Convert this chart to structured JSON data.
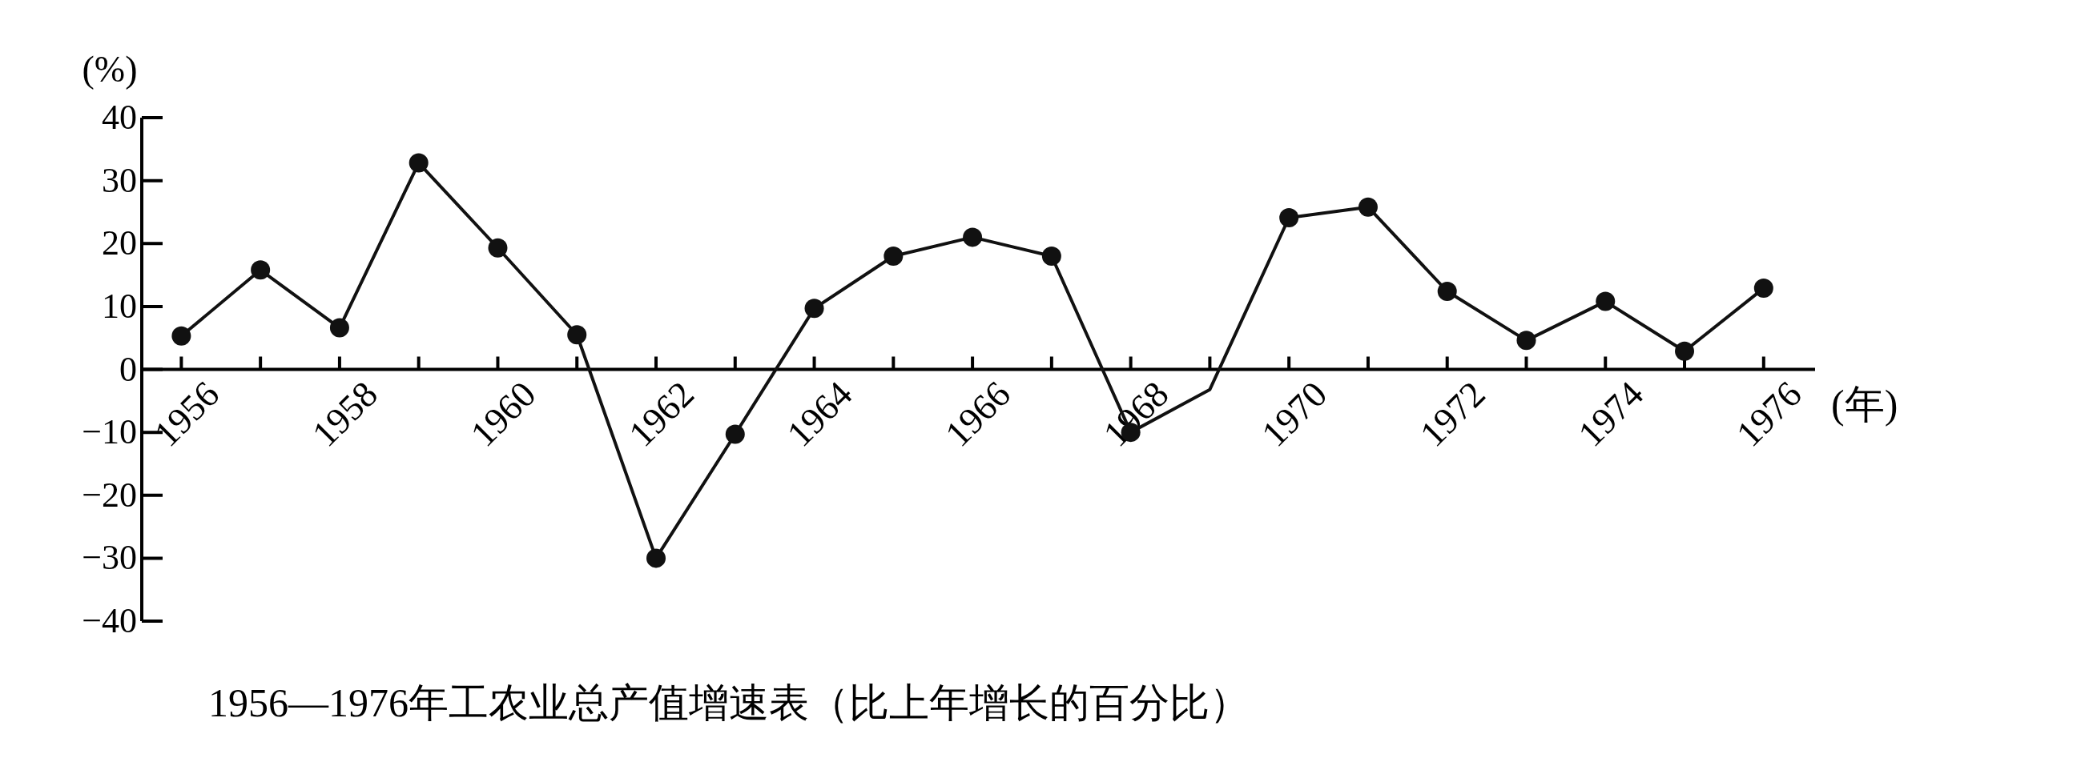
{
  "chart_data": {
    "type": "line",
    "title": "1956—1976年工农业总产值增速表（比上年增长的百分比）",
    "ylabel": "(%)",
    "xlabel": "(年)",
    "x": [
      1956,
      1957,
      1958,
      1959,
      1960,
      1961,
      1962,
      1963,
      1964,
      1965,
      1966,
      1967,
      1968,
      1969,
      1970,
      1971,
      1972,
      1973,
      1974,
      1975,
      1976
    ],
    "series": [
      {
        "color": "#111111",
        "marker": "none",
        "values": [
          5.3,
          15.8,
          6.6,
          32.8,
          19.3,
          5.5,
          -30.0,
          -10.3,
          9.7,
          18.0,
          21.0,
          18.0,
          -10.0,
          -3.2,
          24.1,
          25.8,
          12.4,
          4.6,
          10.8,
          2.9,
          12.9
        ]
      },
      {
        "type": "scatter",
        "color": "#111111",
        "marker": "circle",
        "values": [
          5.3,
          15.8,
          6.6,
          32.8,
          19.3,
          5.5,
          -30.0,
          -10.3,
          9.7,
          18.0,
          21.0,
          18.0,
          -10.0,
          null,
          24.1,
          25.8,
          12.4,
          4.6,
          10.8,
          2.9,
          12.9
        ]
      }
    ],
    "xlim": [
      1955.5,
      1976.65
    ],
    "ylim": [
      -40,
      40
    ],
    "xticks": [
      1956,
      {
        "value": 1957,
        "label": null
      },
      1958,
      {
        "value": 1959,
        "label": null
      },
      1960,
      {
        "value": 1961,
        "label": null
      },
      1962,
      {
        "value": 1963,
        "label": null
      },
      1964,
      {
        "value": 1965,
        "label": null
      },
      1966,
      {
        "value": 1967,
        "label": null
      },
      1968,
      {
        "value": 1969,
        "label": null
      },
      1970,
      {
        "value": 1971,
        "label": null
      },
      1972,
      {
        "value": 1973,
        "label": null
      },
      1974,
      {
        "value": 1975,
        "label": null
      },
      1976
    ],
    "yticks": [
      -40,
      -30,
      -20,
      -10,
      0,
      10,
      20,
      30,
      40
    ],
    "grid": false,
    "line_style": "solid"
  }
}
